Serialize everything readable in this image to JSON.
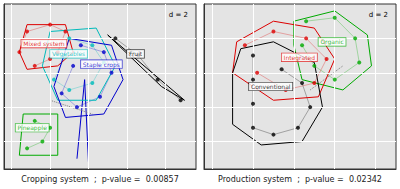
{
  "chart_data": [
    {
      "type": "scatter",
      "xlabel": "Cropping system  ;  p-value =  0.00857",
      "annotation": "d = 2",
      "xlim": [
        -2.2,
        2.8
      ],
      "ylim": [
        -2.8,
        2.0
      ],
      "xticks": [
        -2.0,
        -1.0,
        0.0,
        1.0,
        2.0
      ],
      "yticks": [
        -2.0,
        -1.0,
        0.0,
        1.0
      ],
      "grid": true,
      "tick_labels": false,
      "series": [
        {
          "name": "Mixed system",
          "color": "#dd0000",
          "values": [
            [
              -1.8,
              0.6
            ],
            [
              -1.6,
              1.2
            ],
            [
              -1.0,
              1.4
            ],
            [
              -0.6,
              1.2
            ],
            [
              -0.8,
              0.6
            ],
            [
              -1.0,
              0.4
            ],
            [
              -1.4,
              0.2
            ]
          ],
          "hull": [
            [
              -1.8,
              0.6
            ],
            [
              -1.6,
              1.4
            ],
            [
              -0.6,
              1.4
            ],
            [
              -0.4,
              0.6
            ],
            [
              -0.8,
              0.2
            ],
            [
              -1.6,
              0.1
            ],
            [
              -1.8,
              0.6
            ]
          ],
          "label_xy": [
            -1.75,
            0.85
          ]
        },
        {
          "name": "Fruit",
          "color": "#000000",
          "values": [
            [
              0.7,
              1.0
            ],
            [
              1.3,
              0.5
            ],
            [
              1.8,
              -0.2
            ],
            [
              2.4,
              -0.8
            ]
          ],
          "hull": [
            [
              0.5,
              1.1
            ],
            [
              2.5,
              -0.8
            ],
            [
              1.9,
              -0.4
            ],
            [
              0.5,
              1.1
            ]
          ],
          "label_xy": [
            1.0,
            0.55
          ]
        },
        {
          "name": "Vegetables",
          "color": "#00bbbb",
          "values": [
            [
              -0.5,
              1.0
            ],
            [
              0.1,
              0.8
            ],
            [
              0.4,
              0.3
            ],
            [
              0.1,
              -0.3
            ],
            [
              -0.5,
              -0.5
            ],
            [
              -0.9,
              -0.2
            ],
            [
              -0.6,
              0.5
            ]
          ],
          "hull": [
            [
              -1.0,
              1.2
            ],
            [
              0.2,
              1.3
            ],
            [
              0.7,
              0.2
            ],
            [
              0.2,
              -0.8
            ],
            [
              -0.8,
              -0.8
            ],
            [
              -1.2,
              0.2
            ],
            [
              -1.0,
              1.2
            ]
          ],
          "label_xy": [
            -1.0,
            0.55
          ]
        },
        {
          "name": "Staple crops",
          "color": "#0000cc",
          "values": [
            [
              -0.2,
              0.8
            ],
            [
              0.4,
              0.6
            ],
            [
              0.6,
              0.0
            ],
            [
              0.3,
              -0.7
            ],
            [
              -0.3,
              -1.0
            ],
            [
              -0.7,
              -0.6
            ],
            [
              -0.4,
              0.2
            ]
          ],
          "hull": [
            [
              -0.5,
              1.0
            ],
            [
              0.6,
              0.8
            ],
            [
              0.9,
              -0.2
            ],
            [
              0.4,
              -1.2
            ],
            [
              -0.6,
              -1.3
            ],
            [
              -0.9,
              -0.4
            ],
            [
              -0.5,
              1.0
            ]
          ],
          "label_xy": [
            -0.2,
            0.25
          ]
        },
        {
          "name": "Pineapple",
          "color": "#00aa00",
          "values": [
            [
              -1.4,
              -1.4
            ],
            [
              -1.0,
              -1.6
            ],
            [
              -1.2,
              -2.0
            ],
            [
              -1.6,
              -2.2
            ]
          ],
          "hull": [
            [
              -1.7,
              -1.2
            ],
            [
              -0.8,
              -1.2
            ],
            [
              -0.8,
              -2.4
            ],
            [
              -1.8,
              -2.4
            ],
            [
              -1.7,
              -1.2
            ]
          ],
          "label_xy": [
            -1.9,
            -1.6
          ]
        }
      ],
      "lines": [
        {
          "color": "#0000cc",
          "values": [
            [
              -0.1,
              -0.2
            ],
            [
              -0.3,
              -2.5
            ]
          ]
        },
        {
          "color": "#0000cc",
          "values": [
            [
              -0.1,
              -0.2
            ],
            [
              0.0,
              -2.6
            ]
          ]
        },
        {
          "color": "gray",
          "line_style": "dotted",
          "values": [
            [
              -1.0,
              -0.8
            ],
            [
              0.1,
              -1.2
            ]
          ]
        }
      ]
    },
    {
      "type": "scatter",
      "xlabel": "Production system  ;  p-value =  0.02342",
      "annotation": "d = 2",
      "xlim": [
        -2.2,
        2.5
      ],
      "ylim": [
        -2.8,
        2.0
      ],
      "xticks": [
        -2.0,
        -1.0,
        0.0,
        1.0,
        2.0
      ],
      "yticks": [
        -2.0,
        -1.0,
        0.0,
        1.0
      ],
      "grid": true,
      "tick_labels": false,
      "series": [
        {
          "name": "Organic",
          "color": "#00aa00",
          "values": [
            [
              0.3,
              1.5
            ],
            [
              1.0,
              1.6
            ],
            [
              1.5,
              1.0
            ],
            [
              1.6,
              0.3
            ],
            [
              1.0,
              -0.2
            ],
            [
              0.5,
              0.2
            ],
            [
              0.2,
              0.8
            ]
          ],
          "hull": [
            [
              0.0,
              1.5
            ],
            [
              1.0,
              1.8
            ],
            [
              1.8,
              1.1
            ],
            [
              1.9,
              0.2
            ],
            [
              1.2,
              -0.5
            ],
            [
              0.2,
              -0.2
            ],
            [
              0.0,
              0.8
            ],
            [
              0.0,
              1.5
            ]
          ],
          "label_xy": [
            0.6,
            0.9
          ]
        },
        {
          "name": "Integrated",
          "color": "#dd0000",
          "values": [
            [
              -1.2,
              0.8
            ],
            [
              -0.5,
              1.2
            ],
            [
              0.3,
              1.0
            ],
            [
              0.8,
              0.4
            ],
            [
              0.5,
              -0.3
            ],
            [
              -0.2,
              -0.5
            ],
            [
              -0.9,
              0.0
            ]
          ],
          "hull": [
            [
              -1.4,
              0.9
            ],
            [
              -0.5,
              1.5
            ],
            [
              0.5,
              1.3
            ],
            [
              1.0,
              0.4
            ],
            [
              0.6,
              -0.7
            ],
            [
              -0.5,
              -0.8
            ],
            [
              -1.5,
              0.0
            ],
            [
              -1.4,
              0.9
            ]
          ],
          "label_xy": [
            -0.3,
            0.45
          ]
        },
        {
          "name": "Conventional",
          "color": "#000000",
          "values": [
            [
              -1.0,
              0.5
            ],
            [
              -1.0,
              -0.2
            ],
            [
              -1.0,
              -0.9
            ],
            [
              -1.0,
              -1.6
            ],
            [
              -0.5,
              -1.8
            ],
            [
              0.1,
              -1.6
            ],
            [
              0.4,
              -1.0
            ],
            [
              0.2,
              -0.3
            ],
            [
              -0.3,
              0.1
            ]
          ],
          "hull": [
            [
              -1.3,
              0.7
            ],
            [
              -0.5,
              0.9
            ],
            [
              0.5,
              0.3
            ],
            [
              0.7,
              -1.0
            ],
            [
              0.2,
              -2.0
            ],
            [
              -0.8,
              -2.1
            ],
            [
              -1.5,
              -1.5
            ],
            [
              -1.5,
              0.0
            ],
            [
              -1.3,
              0.7
            ]
          ],
          "label_xy": [
            -1.1,
            -0.4
          ]
        }
      ],
      "lines": [
        {
          "color": "gray",
          "line_style": "dotted",
          "values": [
            [
              0.4,
              -0.5
            ],
            [
              1.2,
              0.2
            ]
          ]
        }
      ]
    }
  ]
}
